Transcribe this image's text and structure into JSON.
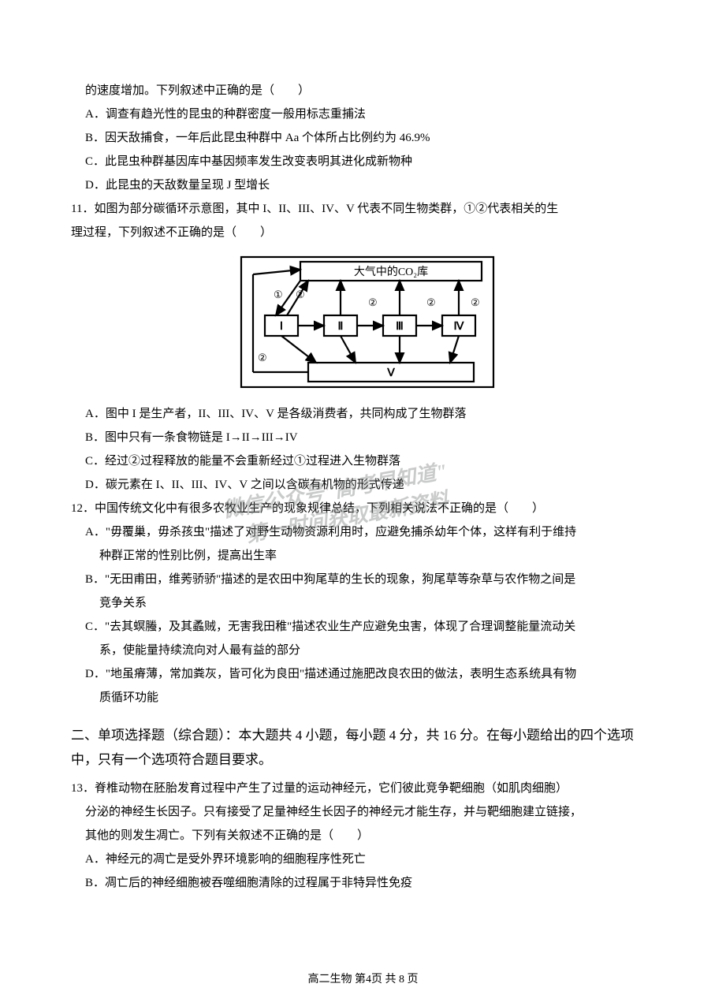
{
  "colors": {
    "text": "#000000",
    "bg": "#ffffff",
    "diagram_stroke": "#000000",
    "watermark": "#888c8b"
  },
  "fontsize": {
    "body": 15,
    "section": 17,
    "footer": 14,
    "watermark": 26
  },
  "q10_tail": "的速度增加。下列叙述中正确的是（　　）",
  "q10_A": "A．调查有趋光性的昆虫的种群密度一般用标志重捕法",
  "q10_B": "B．因天敌捕食，一年后此昆虫种群中 Aa 个体所占比例约为 46.9%",
  "q10_C": "C．此昆虫种群基因库中基因频率发生改变表明其进化成新物种",
  "q10_D": "D．此昆虫的天敌数量呈现 J 型增长",
  "q11_stem1": "11．如图为部分碳循环示意图，其中 I、II、III、IV、V 代表不同生物类群，①②代表相关的生",
  "q11_stem2": "理过程，下列叙述不正确的是（　　）",
  "diagram": {
    "top_label": "大气中的CO₂库",
    "box_I": "Ⅰ",
    "box_II": "Ⅱ",
    "box_III": "Ⅲ",
    "box_IV": "Ⅳ",
    "box_V": "Ⅴ",
    "label_1": "①",
    "label_2": "②",
    "stroke_width": 2.2
  },
  "q11_A": "A．图中 I 是生产者，II、III、IV、V 是各级消费者，共同构成了生物群落",
  "q11_B": "B．图中只有一条食物链是 I→II→III→IV",
  "q11_C": "C．经过②过程释放的能量不会重新经过①过程进入生物群落",
  "q11_D": "D．碳元素在 I、II、III、IV、V 之间以含碳有机物的形式传递",
  "q12_stem": "12．中国传统文化中有很多农牧业生产的现象规律总结，下列相关说法不正确的是（　　）",
  "q12_A1": "A．\"毋覆巢，毋杀孩虫\"描述了对野生动物资源利用时，应避免捕杀幼年个体，这样有利于维持",
  "q12_A2": "种群正常的性别比例，提高出生率",
  "q12_B1": "B．\"无田甫田，维莠骄骄\"描述的是农田中狗尾草的生长的现象，狗尾草等杂草与农作物之间是",
  "q12_B2": "竞争关系",
  "q12_C1": "C．\"去其螟螣，及其蟊贼，无害我田稚\"描述农业生产应避免虫害，体现了合理调整能量流动关",
  "q12_C2": "系，使能量持续流向对人最有益的部分",
  "q12_D1": "D．\"地虽瘠薄，常加粪灰，皆可化为良田\"描述通过施肥改良农田的做法，表明生态系统具有物",
  "q12_D2": "质循环功能",
  "section2": "二、单项选择题（综合题）：本大题共 4 小题，每小题 4 分，共 16 分。在每小题给出的四个选项中，只有一个选项符合题目要求。",
  "q13_stem1": "13．脊椎动物在胚胎发育过程中产生了过量的运动神经元，它们彼此竞争靶细胞（如肌肉细胞）",
  "q13_stem2": "分泌的神经生长因子。只有接受了足量神经生长因子的神经元才能生存，并与靶细胞建立链接，",
  "q13_stem3": "其他的则发生凋亡。下列有关叙述不正确的是（　　）",
  "q13_A": "A．神经元的凋亡是受外界环境影响的细胞程序性死亡",
  "q13_B": "B．凋亡后的神经细胞被吞噬细胞清除的过程属于非特异性免疫",
  "footer": "高二生物 第4页 共 8 页",
  "watermark1": "微信公众号\"高考早知道\"",
  "watermark2": "第一时间获取最新资料"
}
